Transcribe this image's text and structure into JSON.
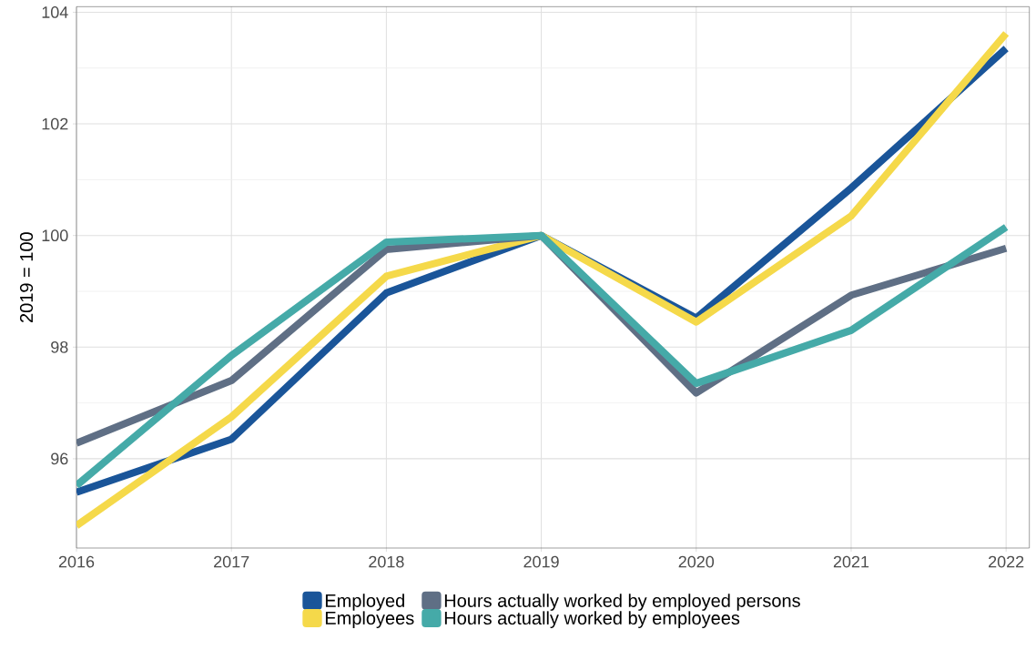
{
  "chart_data": {
    "type": "line",
    "ylabel": "2019 = 100",
    "x": [
      2016,
      2017,
      2018,
      2019,
      2020,
      2021,
      2022
    ],
    "series": [
      {
        "name": "Employed",
        "color": "#1a5599",
        "values": [
          95.4,
          96.35,
          98.97,
          100,
          98.52,
          100.85,
          103.35
        ]
      },
      {
        "name": "Employees",
        "color": "#f5d94a",
        "values": [
          94.8,
          96.75,
          99.27,
          100,
          98.45,
          100.35,
          103.62
        ]
      },
      {
        "name": "Hours actually worked by employed persons",
        "color": "#5f6f85",
        "values": [
          96.28,
          97.4,
          99.75,
          100,
          97.18,
          98.93,
          99.77
        ]
      },
      {
        "name": "Hours actually worked by employees",
        "color": "#45aaa8",
        "values": [
          95.52,
          97.85,
          99.88,
          100,
          97.35,
          98.3,
          100.15
        ]
      }
    ],
    "xlim": [
      2016,
      2022.15
    ],
    "ylim": [
      94.4,
      104.1
    ],
    "xticks": [
      2016,
      2017,
      2018,
      2019,
      2020,
      2021,
      2022
    ],
    "yticks": [
      96,
      98,
      100,
      102,
      104
    ],
    "grid": true,
    "legend": "bottom",
    "marker": "none",
    "line_style": "solid"
  }
}
